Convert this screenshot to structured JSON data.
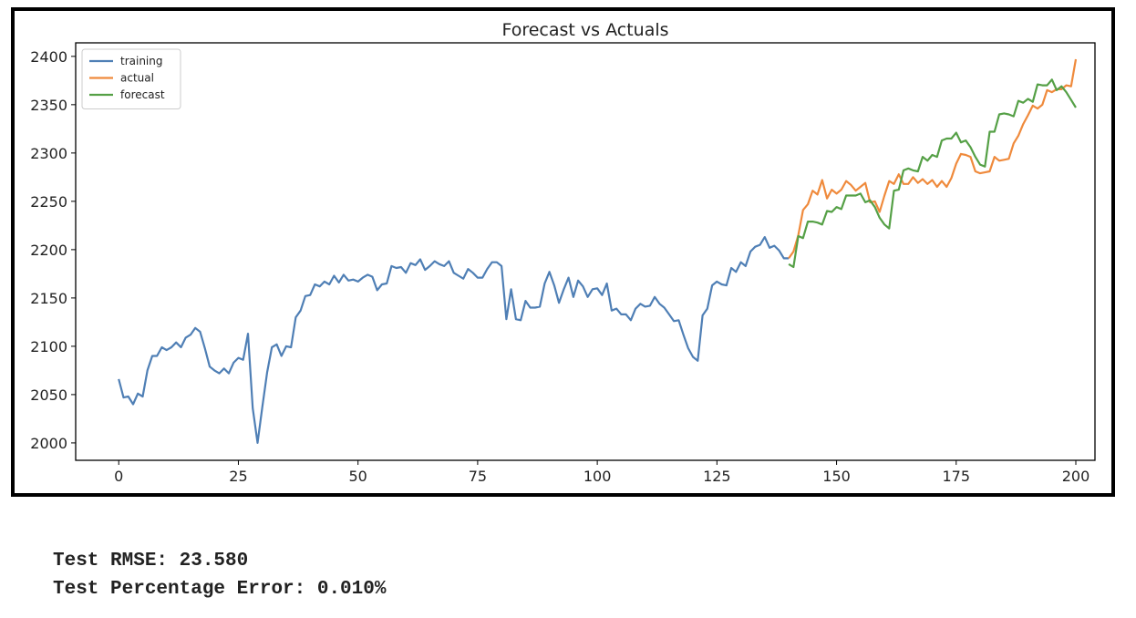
{
  "output": {
    "rmse_line": "Test RMSE: 23.580",
    "pct_line": "Test Percentage Error: 0.010%"
  },
  "chart_data": {
    "type": "line",
    "title": "Forecast vs Actuals",
    "xlabel": "",
    "ylabel": "",
    "xlim": [
      -9,
      204
    ],
    "ylim": [
      1982,
      2414
    ],
    "xticks": [
      0,
      25,
      50,
      75,
      100,
      125,
      150,
      175,
      200
    ],
    "yticks": [
      2000,
      2050,
      2100,
      2150,
      2200,
      2250,
      2300,
      2350,
      2400
    ],
    "grid": false,
    "legend_position": "top-left",
    "series": [
      {
        "name": "training",
        "color": "#4f7fb5",
        "x_start": 0,
        "values": [
          2066,
          2047,
          2048,
          2040,
          2051,
          2048,
          2075,
          2090,
          2090,
          2099,
          2096,
          2099,
          2104,
          2099,
          2109,
          2112,
          2119,
          2115,
          2098,
          2079,
          2075,
          2072,
          2077,
          2072,
          2083,
          2088,
          2086,
          2113,
          2036,
          2000,
          2037,
          2073,
          2099,
          2102,
          2090,
          2100,
          2099,
          2130,
          2137,
          2152,
          2153,
          2164,
          2162,
          2167,
          2164,
          2173,
          2166,
          2174,
          2168,
          2169,
          2167,
          2171,
          2174,
          2172,
          2158,
          2164,
          2165,
          2183,
          2181,
          2182,
          2176,
          2186,
          2184,
          2190,
          2179,
          2183,
          2188,
          2185,
          2183,
          2188,
          2176,
          2173,
          2170,
          2180,
          2176,
          2171,
          2171,
          2180,
          2187,
          2187,
          2183,
          2128,
          2159,
          2128,
          2127,
          2147,
          2140,
          2140,
          2141,
          2165,
          2177,
          2163,
          2145,
          2159,
          2171,
          2151,
          2168,
          2162,
          2151,
          2159,
          2160,
          2153,
          2165,
          2137,
          2139,
          2133,
          2133,
          2127,
          2139,
          2144,
          2141,
          2142,
          2151,
          2144,
          2140,
          2133,
          2126,
          2127,
          2112,
          2098,
          2089,
          2085,
          2132,
          2139,
          2163,
          2167,
          2164,
          2163,
          2181,
          2177,
          2187,
          2183,
          2198,
          2203,
          2205,
          2213,
          2202,
          2204,
          2199,
          2191,
          2191
        ]
      },
      {
        "name": "actual",
        "color": "#ef8a3c",
        "x_start": 140,
        "values": [
          2191,
          2198,
          2215,
          2241,
          2247,
          2261,
          2257,
          2272,
          2253,
          2262,
          2258,
          2262,
          2271,
          2267,
          2261,
          2265,
          2269,
          2249,
          2250,
          2239,
          2256,
          2271,
          2268,
          2278,
          2268,
          2268,
          2275,
          2269,
          2273,
          2268,
          2272,
          2265,
          2271,
          2265,
          2274,
          2289,
          2299,
          2298,
          2296,
          2281,
          2279,
          2280,
          2281,
          2296,
          2292,
          2293,
          2294,
          2310,
          2318,
          2330,
          2339,
          2349,
          2346,
          2350,
          2365,
          2363,
          2366,
          2366,
          2370,
          2369,
          2397
        ]
      },
      {
        "name": "forecast",
        "color": "#55a046",
        "x_start": 140,
        "values": [
          2185,
          2182,
          2214,
          2212,
          2229,
          2229,
          2228,
          2226,
          2240,
          2239,
          2244,
          2242,
          2256,
          2256,
          2256,
          2258,
          2249,
          2251,
          2244,
          2233,
          2226,
          2222,
          2261,
          2262,
          2282,
          2284,
          2282,
          2281,
          2296,
          2292,
          2298,
          2296,
          2313,
          2315,
          2315,
          2321,
          2311,
          2313,
          2306,
          2296,
          2288,
          2286,
          2322,
          2322,
          2340,
          2341,
          2340,
          2338,
          2354,
          2352,
          2356,
          2353,
          2371,
          2370,
          2370,
          2376,
          2365,
          2369,
          2363,
          2355,
          2347
        ]
      }
    ]
  }
}
